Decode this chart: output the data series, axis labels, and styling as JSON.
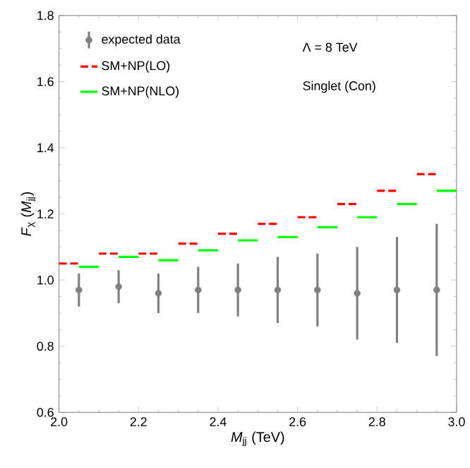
{
  "chart_data": {
    "type": "scatter",
    "xlabel": "*M*$_{jj}$ (TeV)",
    "ylabel": "*F*$_{χ}$ (*M*$_{jj}$)",
    "xlim": [
      2.0,
      3.0
    ],
    "xticks": [
      {
        "value": 2.0,
        "label": "2.0"
      },
      2.2,
      2.4,
      2.6,
      2.8,
      {
        "value": 3.0,
        "label": "3.0"
      }
    ],
    "ylim": [
      0.6,
      1.8
    ],
    "yticks": [
      0.6,
      0.8,
      {
        "value": 1.0,
        "label": "1.0"
      },
      1.2,
      1.4,
      1.6,
      1.8
    ],
    "grid": false,
    "legend": "top left",
    "annotations": [
      "Λ = 8 TeV",
      "Singlet (Con)"
    ],
    "series": [
      {
        "name": "expected data",
        "marker": "circle",
        "color": "#808080",
        "x": [
          2.05,
          2.15,
          2.25,
          2.35,
          2.45,
          2.55,
          2.65,
          2.75,
          2.85,
          2.95
        ],
        "values": [
          0.97,
          0.98,
          0.96,
          0.97,
          0.97,
          0.97,
          0.97,
          0.96,
          0.97,
          0.97
        ],
        "errors": [
          0.05,
          0.05,
          0.06,
          0.07,
          0.08,
          0.1,
          0.11,
          0.14,
          0.16,
          0.2
        ]
      },
      {
        "name": "SM+NP(LO)",
        "type": "line",
        "marker": "none",
        "line_style": "dashed",
        "color": "#ff0000",
        "x": [
          2.0,
          2.05,
          2.075,
          2.1,
          2.15,
          2.175,
          2.2,
          2.25,
          2.275,
          2.3,
          2.35,
          2.375,
          2.4,
          2.45,
          2.475,
          2.5,
          2.55,
          2.575,
          2.6,
          2.65,
          2.675,
          2.7,
          2.75,
          2.775,
          2.8,
          2.85,
          2.875,
          2.9,
          2.95
        ],
        "values": [
          1.05,
          1.05,
          null,
          1.08,
          1.08,
          null,
          1.08,
          1.08,
          null,
          1.11,
          1.11,
          null,
          1.14,
          1.14,
          null,
          1.17,
          1.17,
          null,
          1.19,
          1.19,
          null,
          1.23,
          1.23,
          null,
          1.27,
          1.27,
          null,
          1.32,
          1.32
        ]
      },
      {
        "name": "SM+NP(NLO)",
        "type": "line",
        "marker": "none",
        "line_style": "solid",
        "color": "#00ff00",
        "x": [
          2.05,
          2.1,
          2.125,
          2.15,
          2.2,
          2.225,
          2.25,
          2.3,
          2.325,
          2.35,
          2.4,
          2.425,
          2.45,
          2.5,
          2.525,
          2.55,
          2.6,
          2.625,
          2.65,
          2.7,
          2.725,
          2.75,
          2.8,
          2.825,
          2.85,
          2.9,
          2.925,
          2.95,
          3.0
        ],
        "values": [
          1.04,
          1.04,
          null,
          1.07,
          1.07,
          null,
          1.06,
          1.06,
          null,
          1.09,
          1.09,
          null,
          1.12,
          1.12,
          null,
          1.13,
          1.13,
          null,
          1.16,
          1.16,
          null,
          1.19,
          1.19,
          null,
          1.23,
          1.23,
          null,
          1.27,
          1.27
        ]
      }
    ]
  }
}
